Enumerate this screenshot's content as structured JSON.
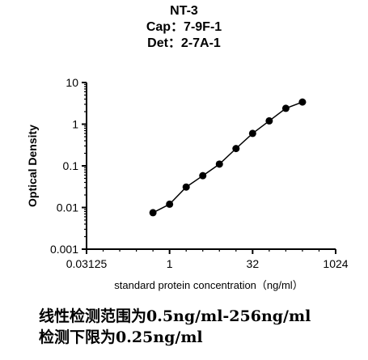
{
  "chart_data": {
    "type": "scatter",
    "title": "NT-3",
    "subtitle_lines": [
      "Cap：7-9F-1",
      "Det：2-7A-1"
    ],
    "xlabel": "standard protein concentration（ng/ml）",
    "ylabel": "Optical Density",
    "x_scale": "log2",
    "y_scale": "log10",
    "xlim": [
      0.03125,
      1024
    ],
    "ylim": [
      0.001,
      10
    ],
    "x_ticks": [
      "0.03125",
      "1",
      "32",
      "1024"
    ],
    "y_ticks": [
      "10",
      "1",
      "0.1",
      "0.01",
      "0.001"
    ],
    "grid": false,
    "series": [
      {
        "marker": "circle",
        "line": true,
        "color": "#000000",
        "x": [
          0.5,
          1,
          2,
          4,
          8,
          16,
          32,
          64,
          128,
          256
        ],
        "y": [
          0.0075,
          0.012,
          0.031,
          0.058,
          0.11,
          0.26,
          0.6,
          1.2,
          2.4,
          3.4
        ]
      }
    ]
  },
  "caption": {
    "line1": "线性检测范围为0.5ng/ml-256ng/ml",
    "line2": "检测下限为0.25ng/ml"
  }
}
